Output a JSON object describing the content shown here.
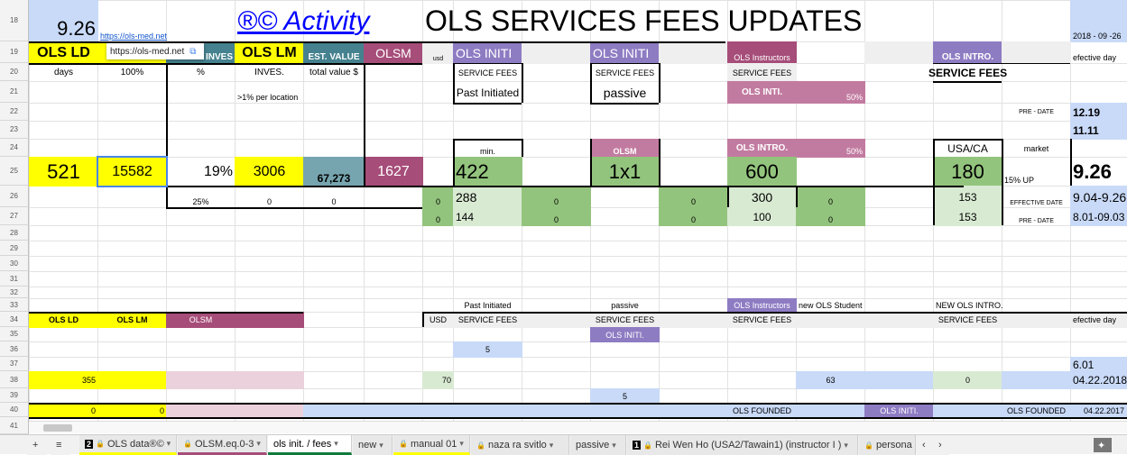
{
  "rows": [
    18,
    19,
    20,
    21,
    22,
    23,
    24,
    25,
    26,
    27,
    28,
    29,
    30,
    31,
    32,
    33,
    34,
    35,
    36,
    37,
    38,
    39,
    40,
    41
  ],
  "tooltip": {
    "url": "https://ols-med.net",
    "icon": "external-link-icon"
  },
  "colors": {
    "yellow": "#ffff00",
    "teal": "#45818e",
    "maroon": "#a64d79",
    "purple": "#8e7cc3",
    "pink": "#c27ba0",
    "green": "#93c47d",
    "light_green": "#d9ead3",
    "blue": "#c9daf8",
    "light_pink": "#ead1dc",
    "active_tab": "#0f7b3c"
  },
  "cells": [
    {
      "r": 18,
      "c": 0,
      "text": "9.26",
      "cls": "bl s22 r bt",
      "link": false
    },
    {
      "r": 18,
      "c": 1,
      "text": "https://ols-med.net",
      "cls": "s9 l bt",
      "link": true
    },
    {
      "r": 18,
      "c": 3,
      "cs": 3,
      "text": "®© Activity",
      "cls": "s22 l link-big",
      "link": true
    },
    {
      "r": 18,
      "c": 6,
      "cs": 8,
      "text": "OLS SERVICES FEES UPDATES",
      "cls": "s22 l"
    },
    {
      "r": 18,
      "c": 16,
      "text": "2018 - 09 -26",
      "cls": "bl s9 l bt"
    },
    {
      "r": 19,
      "c": 0,
      "text": "OLS LD",
      "cls": "y s16 b"
    },
    {
      "r": 19,
      "c": 1,
      "text": "",
      "cls": "y"
    },
    {
      "r": 19,
      "c": 2,
      "text": "INVES",
      "cls": "tg w s10 b r bt"
    },
    {
      "r": 19,
      "c": 3,
      "text": "OLS LM",
      "cls": "y s16 b"
    },
    {
      "r": 19,
      "c": 4,
      "text": "EST. VALUE",
      "cls": "tg w s10 b bt"
    },
    {
      "r": 19,
      "c": 5,
      "text": "OLSM",
      "cls": "mr w s14"
    },
    {
      "r": 19,
      "c": 6,
      "text": "usd",
      "cls": "gy s7 bt"
    },
    {
      "r": 19,
      "c": 7,
      "text": "OLS INITI",
      "cls": "pu w s14 l"
    },
    {
      "r": 19,
      "c": 8,
      "text": "",
      "cls": "gy"
    },
    {
      "r": 19,
      "c": 9,
      "text": "OLS INITI",
      "cls": "pu w s14 l"
    },
    {
      "r": 19,
      "c": 10,
      "text": "",
      "cls": "gy"
    },
    {
      "r": 19,
      "c": 11,
      "text": "OLS Instructors",
      "cls": "mr w s9 bt"
    },
    {
      "r": 19,
      "c": 13,
      "text": "",
      "cls": "gy"
    },
    {
      "r": 19,
      "c": 14,
      "text": "OLS INTRO.",
      "cls": "pu w s10 b bt"
    },
    {
      "r": 19,
      "c": 15,
      "text": "",
      "cls": "gy"
    },
    {
      "r": 19,
      "c": 16,
      "text": "efective day",
      "cls": "s9 l bt"
    },
    {
      "r": 20,
      "c": 0,
      "text": "days",
      "cls": "s10"
    },
    {
      "r": 20,
      "c": 1,
      "text": "100%",
      "cls": "s10"
    },
    {
      "r": 20,
      "c": 2,
      "text": "%",
      "cls": "s10"
    },
    {
      "r": 20,
      "c": 3,
      "text": "INVES.",
      "cls": "s10"
    },
    {
      "r": 20,
      "c": 4,
      "text": "total value $",
      "cls": "s10"
    },
    {
      "r": 20,
      "c": 7,
      "text": "SERVICE FEES",
      "cls": "s9"
    },
    {
      "r": 20,
      "c": 9,
      "text": "SERVICE FEES",
      "cls": "s9"
    },
    {
      "r": 20,
      "c": 11,
      "text": "SERVICE FEES",
      "cls": "gy s9"
    },
    {
      "r": 20,
      "c": 14,
      "text": "SERVICE FEES",
      "cls": "s12 b"
    },
    {
      "r": 21,
      "c": 3,
      "text": ">1% per location",
      "cls": "s9 l bt"
    },
    {
      "r": 21,
      "c": 7,
      "text": "Past Initiated",
      "cls": "s12"
    },
    {
      "r": 21,
      "c": 9,
      "text": "passive",
      "cls": "s14"
    },
    {
      "r": 21,
      "c": 11,
      "text": "OLS INTI.",
      "cls": "pk w s10 b"
    },
    {
      "r": 21,
      "c": 12,
      "text": "50%",
      "cls": "pk w s9 r bt"
    },
    {
      "r": 22,
      "c": 15,
      "text": "PRE - DATE",
      "cls": "s7"
    },
    {
      "r": 22,
      "c": 16,
      "text": "12.19",
      "cls": "bl s12 b l"
    },
    {
      "r": 23,
      "c": 16,
      "text": "11.11",
      "cls": "bl s12 b l"
    },
    {
      "r": 24,
      "c": 7,
      "text": "min.",
      "cls": "s9 bt"
    },
    {
      "r": 24,
      "c": 9,
      "text": "OLSM",
      "cls": "pk w s9 b bt"
    },
    {
      "r": 24,
      "c": 11,
      "text": "OLS INTRO.",
      "cls": "pk w s10 b"
    },
    {
      "r": 24,
      "c": 12,
      "text": "50%",
      "cls": "pk w s9 r bt"
    },
    {
      "r": 24,
      "c": 14,
      "text": "USA/CA",
      "cls": "s12"
    },
    {
      "r": 24,
      "c": 15,
      "text": "market",
      "cls": "s9"
    },
    {
      "r": 25,
      "c": 0,
      "text": "521",
      "cls": "y s22"
    },
    {
      "r": 25,
      "c": 1,
      "text": "15582",
      "cls": "y s16 sel"
    },
    {
      "r": 25,
      "c": 2,
      "text": "19%",
      "cls": "s16 r"
    },
    {
      "r": 25,
      "c": 3,
      "text": "3006",
      "cls": "y s16"
    },
    {
      "r": 25,
      "c": 4,
      "text": "67,273",
      "cls": "tg2 s12 b bt"
    },
    {
      "r": 25,
      "c": 5,
      "text": "1627",
      "cls": "mr w s16"
    },
    {
      "r": 25,
      "c": 7,
      "text": "422",
      "cls": "gr s22 l"
    },
    {
      "r": 25,
      "c": 9,
      "text": "1x1",
      "cls": "gr s22"
    },
    {
      "r": 25,
      "c": 11,
      "text": "600",
      "cls": "gr s22"
    },
    {
      "r": 25,
      "c": 14,
      "text": "180",
      "cls": "gr s22"
    },
    {
      "r": 25,
      "c": 15,
      "text": "15% UP",
      "cls": "s9 l bt"
    },
    {
      "r": 25,
      "c": 16,
      "text": "9.26",
      "cls": "s22 b l"
    },
    {
      "r": 26,
      "c": 2,
      "text": "25%",
      "cls": "s9 bt"
    },
    {
      "r": 26,
      "c": 3,
      "text": "0",
      "cls": "s9 bt"
    },
    {
      "r": 26,
      "c": 4,
      "text": "0",
      "cls": "s9 bt"
    },
    {
      "r": 26,
      "c": 6,
      "text": "0",
      "cls": "gr s9 bt"
    },
    {
      "r": 26,
      "c": 7,
      "text": "288",
      "cls": "lg s14 l"
    },
    {
      "r": 26,
      "c": 8,
      "text": "0",
      "cls": "gr s9 bt"
    },
    {
      "r": 26,
      "c": 10,
      "text": "0",
      "cls": "gr s9 bt"
    },
    {
      "r": 26,
      "c": 11,
      "text": "300",
      "cls": "lg s14"
    },
    {
      "r": 26,
      "c": 12,
      "text": "0",
      "cls": "gr s9 bt"
    },
    {
      "r": 26,
      "c": 14,
      "text": "153",
      "cls": "lg s12"
    },
    {
      "r": 26,
      "c": 15,
      "text": "EFFECTIVE DATE",
      "cls": "s7 bt"
    },
    {
      "r": 26,
      "c": 16,
      "text": "9.04-9.26",
      "cls": "bl s14 l"
    },
    {
      "r": 27,
      "c": 6,
      "text": "0",
      "cls": "gr s9 bt"
    },
    {
      "r": 27,
      "c": 7,
      "text": "144",
      "cls": "lg s12 l"
    },
    {
      "r": 27,
      "c": 8,
      "text": "0",
      "cls": "gr s9 bt"
    },
    {
      "r": 27,
      "c": 10,
      "text": "0",
      "cls": "gr s9 bt"
    },
    {
      "r": 27,
      "c": 11,
      "text": "100",
      "cls": "lg s12"
    },
    {
      "r": 27,
      "c": 12,
      "text": "0",
      "cls": "gr s9 bt"
    },
    {
      "r": 27,
      "c": 14,
      "text": "153",
      "cls": "lg s12"
    },
    {
      "r": 27,
      "c": 15,
      "text": "PRE - DATE",
      "cls": "s7 bt"
    },
    {
      "r": 27,
      "c": 16,
      "text": "8.01-09.03",
      "cls": "bl s12 l"
    },
    {
      "r": 33,
      "c": 7,
      "text": "Past Initiated",
      "cls": "s9"
    },
    {
      "r": 33,
      "c": 9,
      "text": "passive",
      "cls": "s9"
    },
    {
      "r": 33,
      "c": 11,
      "text": "OLS Instructors",
      "cls": "pu w s9"
    },
    {
      "r": 33,
      "c": 12,
      "text": "new OLS Student",
      "cls": "s9 l"
    },
    {
      "r": 33,
      "c": 14,
      "text": "NEW OLS INTRO.",
      "cls": "s9 l"
    },
    {
      "r": 34,
      "c": 0,
      "text": "OLS LD",
      "cls": "y s9 b"
    },
    {
      "r": 34,
      "c": 1,
      "text": "OLS LM",
      "cls": "y s9 b"
    },
    {
      "r": 34,
      "c": 2,
      "text": "OLSM",
      "cls": "mr w s9"
    },
    {
      "r": 34,
      "c": 3,
      "text": "",
      "cls": "mr"
    },
    {
      "r": 34,
      "c": 6,
      "text": "USD",
      "cls": "gy s9"
    },
    {
      "r": 34,
      "c": 7,
      "text": "SERVICE FEES",
      "cls": "gy s9"
    },
    {
      "r": 34,
      "c": 8,
      "text": "",
      "cls": "gy"
    },
    {
      "r": 34,
      "c": 9,
      "text": "SERVICE FEES",
      "cls": "gy s9"
    },
    {
      "r": 34,
      "c": 10,
      "text": "",
      "cls": "gy"
    },
    {
      "r": 34,
      "c": 11,
      "text": "SERVICE FEES",
      "cls": "gy s9"
    },
    {
      "r": 34,
      "c": 12,
      "text": "",
      "cls": "gy"
    },
    {
      "r": 34,
      "c": 13,
      "text": "",
      "cls": "gy"
    },
    {
      "r": 34,
      "c": 14,
      "text": "SERVICE FEES",
      "cls": "gy s9"
    },
    {
      "r": 34,
      "c": 15,
      "text": "",
      "cls": "gy"
    },
    {
      "r": 34,
      "c": 16,
      "text": "efective day",
      "cls": "gy s9 l"
    },
    {
      "r": 35,
      "c": 9,
      "text": "OLS INITI.",
      "cls": "pu w s9"
    },
    {
      "r": 36,
      "c": 7,
      "text": "5",
      "cls": "bl s9"
    },
    {
      "r": 37,
      "c": 16,
      "text": "6.01",
      "cls": "bl s12 l"
    },
    {
      "r": 38,
      "c": 0,
      "text": "355",
      "cls": "y s9 r"
    },
    {
      "r": 38,
      "c": 1,
      "text": "",
      "cls": "y"
    },
    {
      "r": 38,
      "c": 2,
      "text": "",
      "cls": "lp"
    },
    {
      "r": 38,
      "c": 3,
      "text": "",
      "cls": "lp"
    },
    {
      "r": 38,
      "c": 6,
      "text": "70",
      "cls": "lg s9 r"
    },
    {
      "r": 38,
      "c": 12,
      "text": "63",
      "cls": "bl s9"
    },
    {
      "r": 38,
      "c": 13,
      "text": "",
      "cls": "bl"
    },
    {
      "r": 38,
      "c": 14,
      "text": "0",
      "cls": "lg s9"
    },
    {
      "r": 38,
      "c": 15,
      "text": "",
      "cls": "bl"
    },
    {
      "r": 38,
      "c": 16,
      "text": "04.22.2018",
      "cls": "bl s12 l"
    },
    {
      "r": 39,
      "c": 9,
      "text": "5",
      "cls": "bl s9"
    },
    {
      "r": 40,
      "c": 0,
      "text": "0",
      "cls": "y s9 r"
    },
    {
      "r": 40,
      "c": 1,
      "text": "0",
      "cls": "y s9 r"
    },
    {
      "r": 40,
      "c": 2,
      "text": "",
      "cls": "lp"
    },
    {
      "r": 40,
      "c": 3,
      "text": "",
      "cls": "lp"
    },
    {
      "r": 40,
      "c": 4,
      "cs": 7,
      "text": "",
      "cls": "bl"
    },
    {
      "r": 40,
      "c": 11,
      "text": "OLS FOUNDED",
      "cls": "bl s9"
    },
    {
      "r": 40,
      "c": 12,
      "text": "",
      "cls": "bl"
    },
    {
      "r": 40,
      "c": 13,
      "text": "OLS INITI.",
      "cls": "pu w s9"
    },
    {
      "r": 40,
      "c": 14,
      "text": "",
      "cls": "bl"
    },
    {
      "r": 40,
      "c": 15,
      "text": "OLS FOUNDED",
      "cls": "bl s9"
    },
    {
      "r": 40,
      "c": 16,
      "text": "04.22.2017",
      "cls": "bl s9"
    }
  ],
  "tabs": [
    {
      "label": "OLS data®©",
      "badge": "2",
      "locked": true,
      "active": false
    },
    {
      "label": "OLSM.eq.0-3",
      "badge": "",
      "locked": true,
      "active": false
    },
    {
      "label": "ols init. / fees",
      "badge": "",
      "locked": false,
      "active": true
    },
    {
      "label": "new",
      "badge": "",
      "locked": false,
      "active": false
    },
    {
      "label": "manual 01",
      "badge": "",
      "locked": true,
      "active": false
    },
    {
      "label": "naza ra svitlo",
      "badge": "",
      "locked": true,
      "active": false
    },
    {
      "label": "passive",
      "badge": "",
      "locked": false,
      "active": false
    },
    {
      "label": "Rei Wen Ho (USA2/Tawain1) (instructor I )",
      "badge": "1",
      "locked": true,
      "active": false
    },
    {
      "label": "persona",
      "badge": "",
      "locked": true,
      "active": false
    }
  ],
  "tabbar": {
    "add": "+",
    "list": "≡",
    "prev": "‹",
    "next": "›",
    "explore": "✦"
  }
}
